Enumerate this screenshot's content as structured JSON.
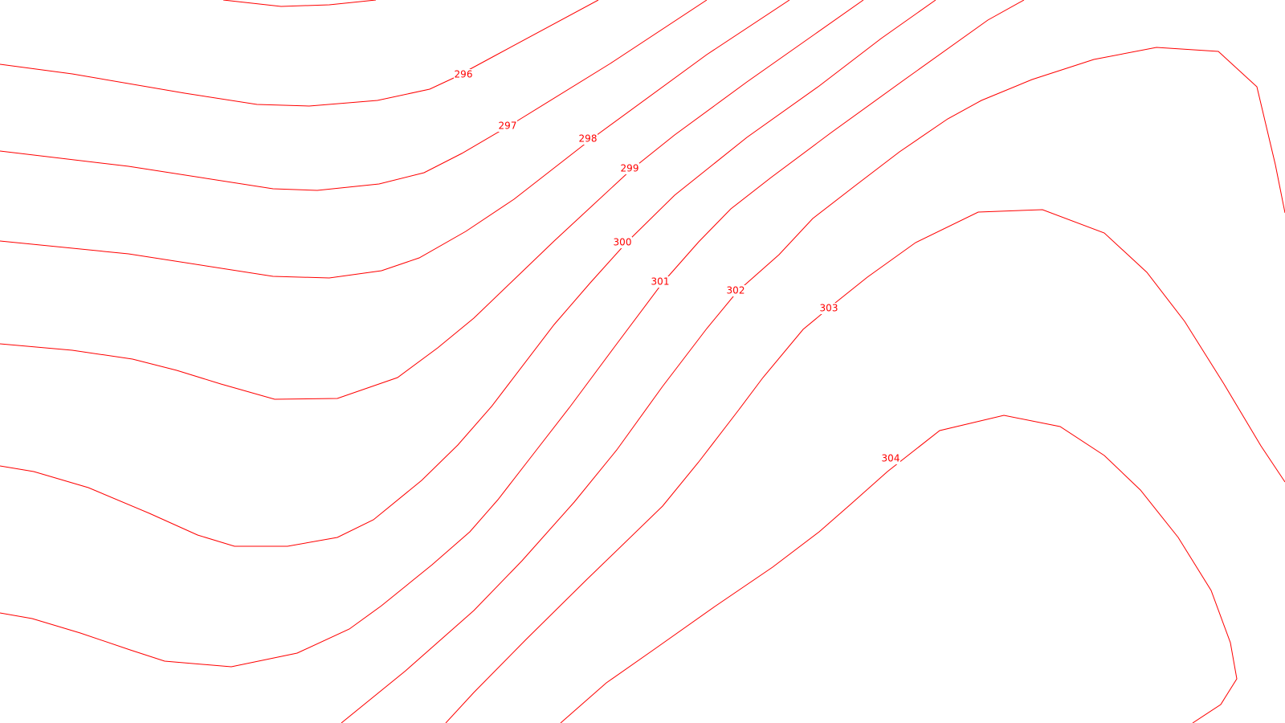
{
  "map": {
    "line_color": "#ff0000",
    "background": "#ffffff",
    "contour_labels": [
      "296",
      "297",
      "298",
      "299",
      "300",
      "301",
      "302",
      "303",
      "304"
    ]
  }
}
